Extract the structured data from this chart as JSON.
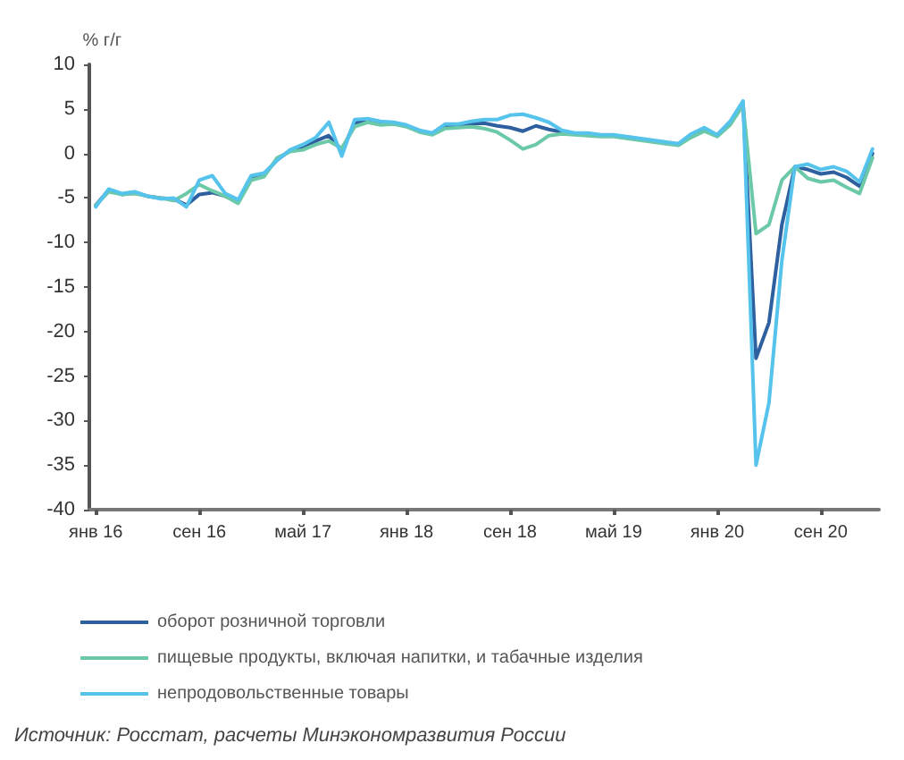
{
  "chart_data": {
    "type": "line",
    "ylabel": "% г/г",
    "categories": [
      "янв 16",
      null,
      null,
      null,
      null,
      null,
      null,
      null,
      "сен 16",
      null,
      null,
      null,
      null,
      null,
      null,
      null,
      "май 17",
      null,
      null,
      null,
      null,
      null,
      null,
      null,
      "янв 18",
      null,
      null,
      null,
      null,
      null,
      null,
      null,
      "сен 18",
      null,
      null,
      null,
      null,
      null,
      null,
      null,
      "май 19",
      null,
      null,
      null,
      null,
      null,
      null,
      null,
      "янв 20",
      null,
      null,
      null,
      null,
      null,
      null,
      null,
      "сен 20",
      null,
      null,
      null,
      null
    ],
    "series": [
      {
        "name": "оборот розничной торговли",
        "color": "#2e5f9e",
        "values": [
          -5.8,
          -4.1,
          -4.6,
          -4.4,
          -4.8,
          -5,
          -5.1,
          -5.8,
          -4.6,
          -4.4,
          -4.8,
          -5.4,
          -2.7,
          -2.4,
          -0.7,
          0.3,
          0.7,
          1.4,
          2,
          0.3,
          3.4,
          3.7,
          3.4,
          3.4,
          3.1,
          2.5,
          2.2,
          3.1,
          3.1,
          3.3,
          3.4,
          3.1,
          2.9,
          2.5,
          3.1,
          2.7,
          2.4,
          2.2,
          2.2,
          2,
          2,
          1.8,
          1.6,
          1.4,
          1.2,
          1,
          2,
          2.7,
          2,
          3.4,
          5.6,
          -23,
          -19,
          -8,
          -1.5,
          -1.8,
          -2.3,
          -2.1,
          -2.7,
          -3.7,
          0
        ]
      },
      {
        "name": "пищевые продукты, включая напитки, и табачные изделия",
        "color": "#6cc9a8",
        "values": [
          -5.8,
          -4.3,
          -4.6,
          -4.5,
          -4.8,
          -5,
          -5.3,
          -4.5,
          -3.5,
          -4.2,
          -4.8,
          -5.6,
          -3,
          -2.6,
          -0.5,
          0.2,
          0.4,
          1,
          1.4,
          0.6,
          3,
          3.5,
          3.2,
          3.3,
          3,
          2.4,
          2.1,
          2.8,
          2.9,
          3,
          2.8,
          2.4,
          1.5,
          0.5,
          1,
          2,
          2.2,
          2.1,
          2,
          1.9,
          1.9,
          1.7,
          1.5,
          1.3,
          1.1,
          0.9,
          1.8,
          2.5,
          1.9,
          3.2,
          5.4,
          -9,
          -8,
          -3,
          -1.5,
          -2.8,
          -3.2,
          -3,
          -3.8,
          -4.5,
          -0.5
        ]
      },
      {
        "name": "непродовольственные товары",
        "color": "#55c3ec",
        "values": [
          -6,
          -4,
          -4.5,
          -4.3,
          -4.8,
          -5.1,
          -5,
          -6,
          -3,
          -2.5,
          -4.5,
          -5.2,
          -2.5,
          -2.2,
          -0.8,
          0.4,
          1,
          1.8,
          3.5,
          -0.3,
          3.8,
          3.9,
          3.6,
          3.5,
          3.2,
          2.6,
          2.3,
          3.3,
          3.3,
          3.6,
          3.8,
          3.8,
          4.3,
          4.4,
          4,
          3.5,
          2.6,
          2.3,
          2.3,
          2.1,
          2.1,
          1.9,
          1.7,
          1.5,
          1.3,
          1.1,
          2.2,
          2.9,
          2.1,
          3.6,
          5.9,
          -35,
          -28,
          -12,
          -1.5,
          -1.2,
          -1.8,
          -1.5,
          -2,
          -3.2,
          0.5
        ]
      }
    ],
    "ylim": [
      -40,
      10
    ],
    "yticks": [
      -40,
      -35,
      -30,
      -25,
      -20,
      -15,
      -10,
      -5,
      0,
      5,
      10
    ],
    "grid": false,
    "legend": "bottom",
    "marker": "none",
    "line_style": "solid",
    "annotations": [
      "Источник: Росстат, расчеты Минэкономразвития России"
    ]
  }
}
